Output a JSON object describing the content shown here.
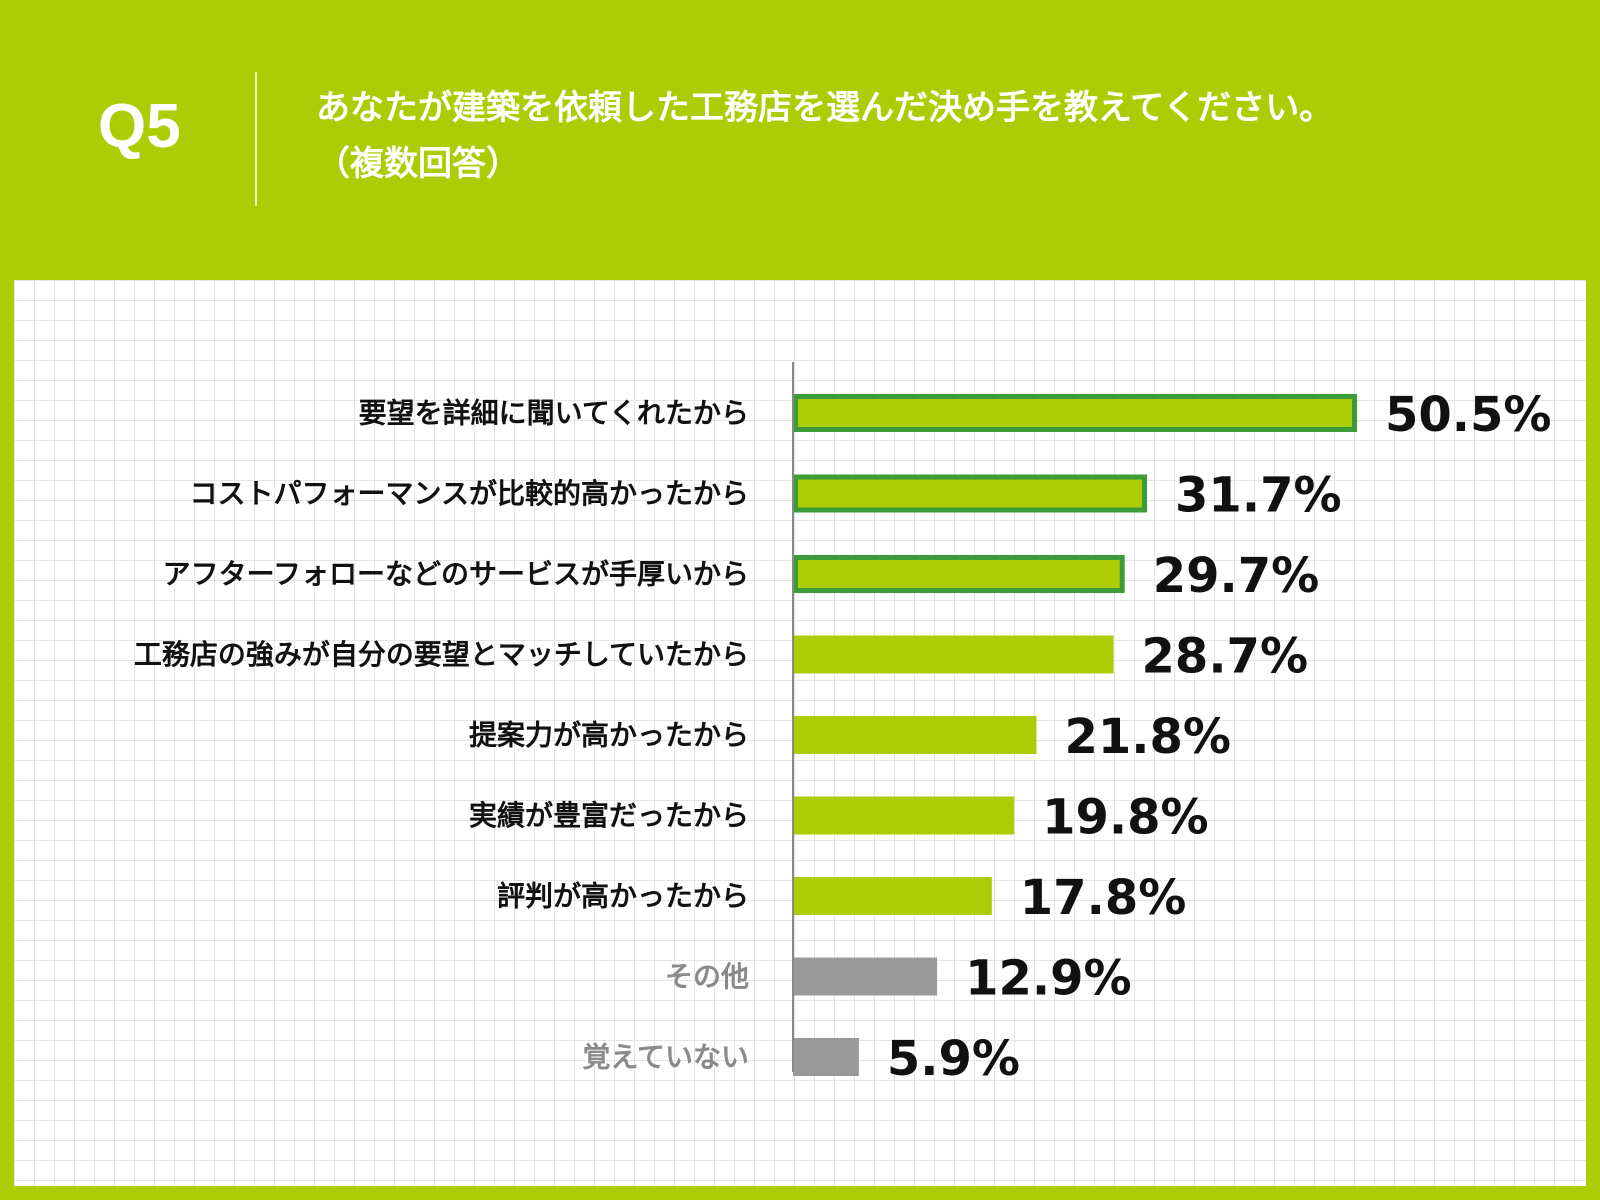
{
  "header": {
    "question_number": "Q5",
    "question_line1": "あなたが建築を依頼した工務店を選んだ決め手を教えてください。",
    "question_line2": "（複数回答）"
  },
  "colors": {
    "background": "#accd05",
    "bar_fill": "#accd05",
    "bar_highlight_border": "#3c9c3a",
    "bar_other": "#999999",
    "label_text": "#111111",
    "label_other_text": "#8a8a8a",
    "axis": "#888888"
  },
  "chart_data": {
    "type": "bar",
    "orientation": "horizontal",
    "categories": [
      "要望を詳細に聞いてくれたから",
      "コストパフォーマンスが比較的高かったから",
      "アフターフォローなどのサービスが手厚いから",
      "工務店の強みが自分の要望とマッチしていたから",
      "提案力が高かったから",
      "実績が豊富だったから",
      "評判が高かったから",
      "その他",
      "覚えていない"
    ],
    "values": [
      50.5,
      31.7,
      29.7,
      28.7,
      21.8,
      19.8,
      17.8,
      12.9,
      5.9
    ],
    "value_labels": [
      "50.5%",
      "31.7%",
      "29.7%",
      "28.7%",
      "21.8%",
      "19.8%",
      "17.8%",
      "12.9%",
      "5.9%"
    ],
    "unit": "%",
    "highlighted_top": 3,
    "muted": [
      "その他",
      "覚えていない"
    ],
    "xlim": [
      0,
      50.5
    ],
    "grid": true,
    "legend": "none"
  }
}
